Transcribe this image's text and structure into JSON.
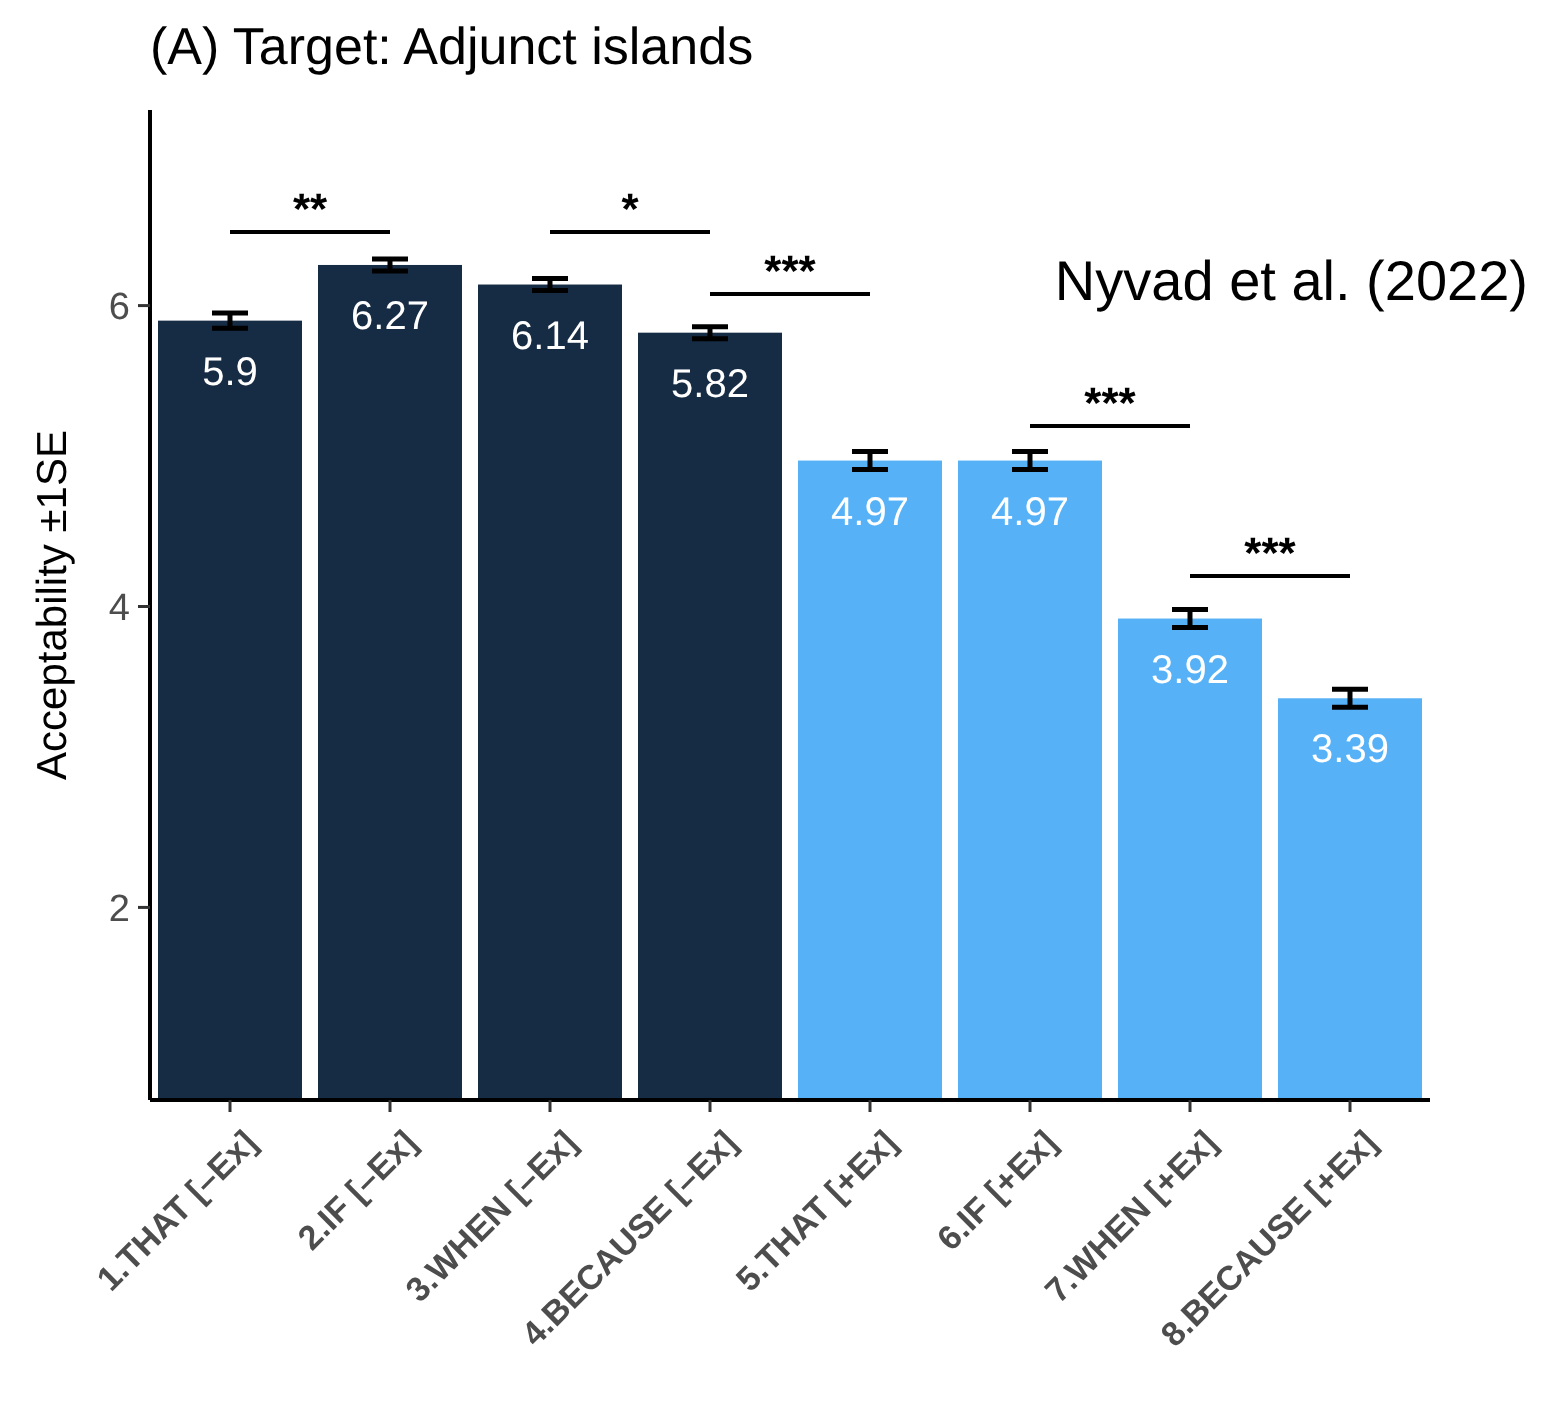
{
  "chart_data": {
    "type": "bar",
    "title": "(A) Target: Adjunct islands",
    "ylabel": "Acceptability ±1SE",
    "categories": [
      "1.THAT [–Ex]",
      "2.IF [–Ex]",
      "3.WHEN [–Ex]",
      "4.BECAUSE [–Ex]",
      "5.THAT [+Ex]",
      "6.IF [+Ex]",
      "7.WHEN [+Ex]",
      "8.BECAUSE [+Ex]"
    ],
    "values": [
      5.9,
      6.27,
      6.14,
      5.82,
      4.97,
      4.97,
      3.92,
      3.39
    ],
    "errors": [
      0.05,
      0.04,
      0.04,
      0.04,
      0.06,
      0.06,
      0.06,
      0.06
    ],
    "colors": [
      "#162b44",
      "#162b44",
      "#162b44",
      "#162b44",
      "#56b1f7",
      "#56b1f7",
      "#56b1f7",
      "#56b1f7"
    ],
    "data_labels": true,
    "ylim": [
      0.72,
      7.3
    ],
    "yticks": [
      2,
      4,
      6
    ],
    "grid": false,
    "annotations": [
      "**",
      "*",
      "***",
      "***",
      "***",
      "Nyvad et al. (2022)"
    ]
  }
}
